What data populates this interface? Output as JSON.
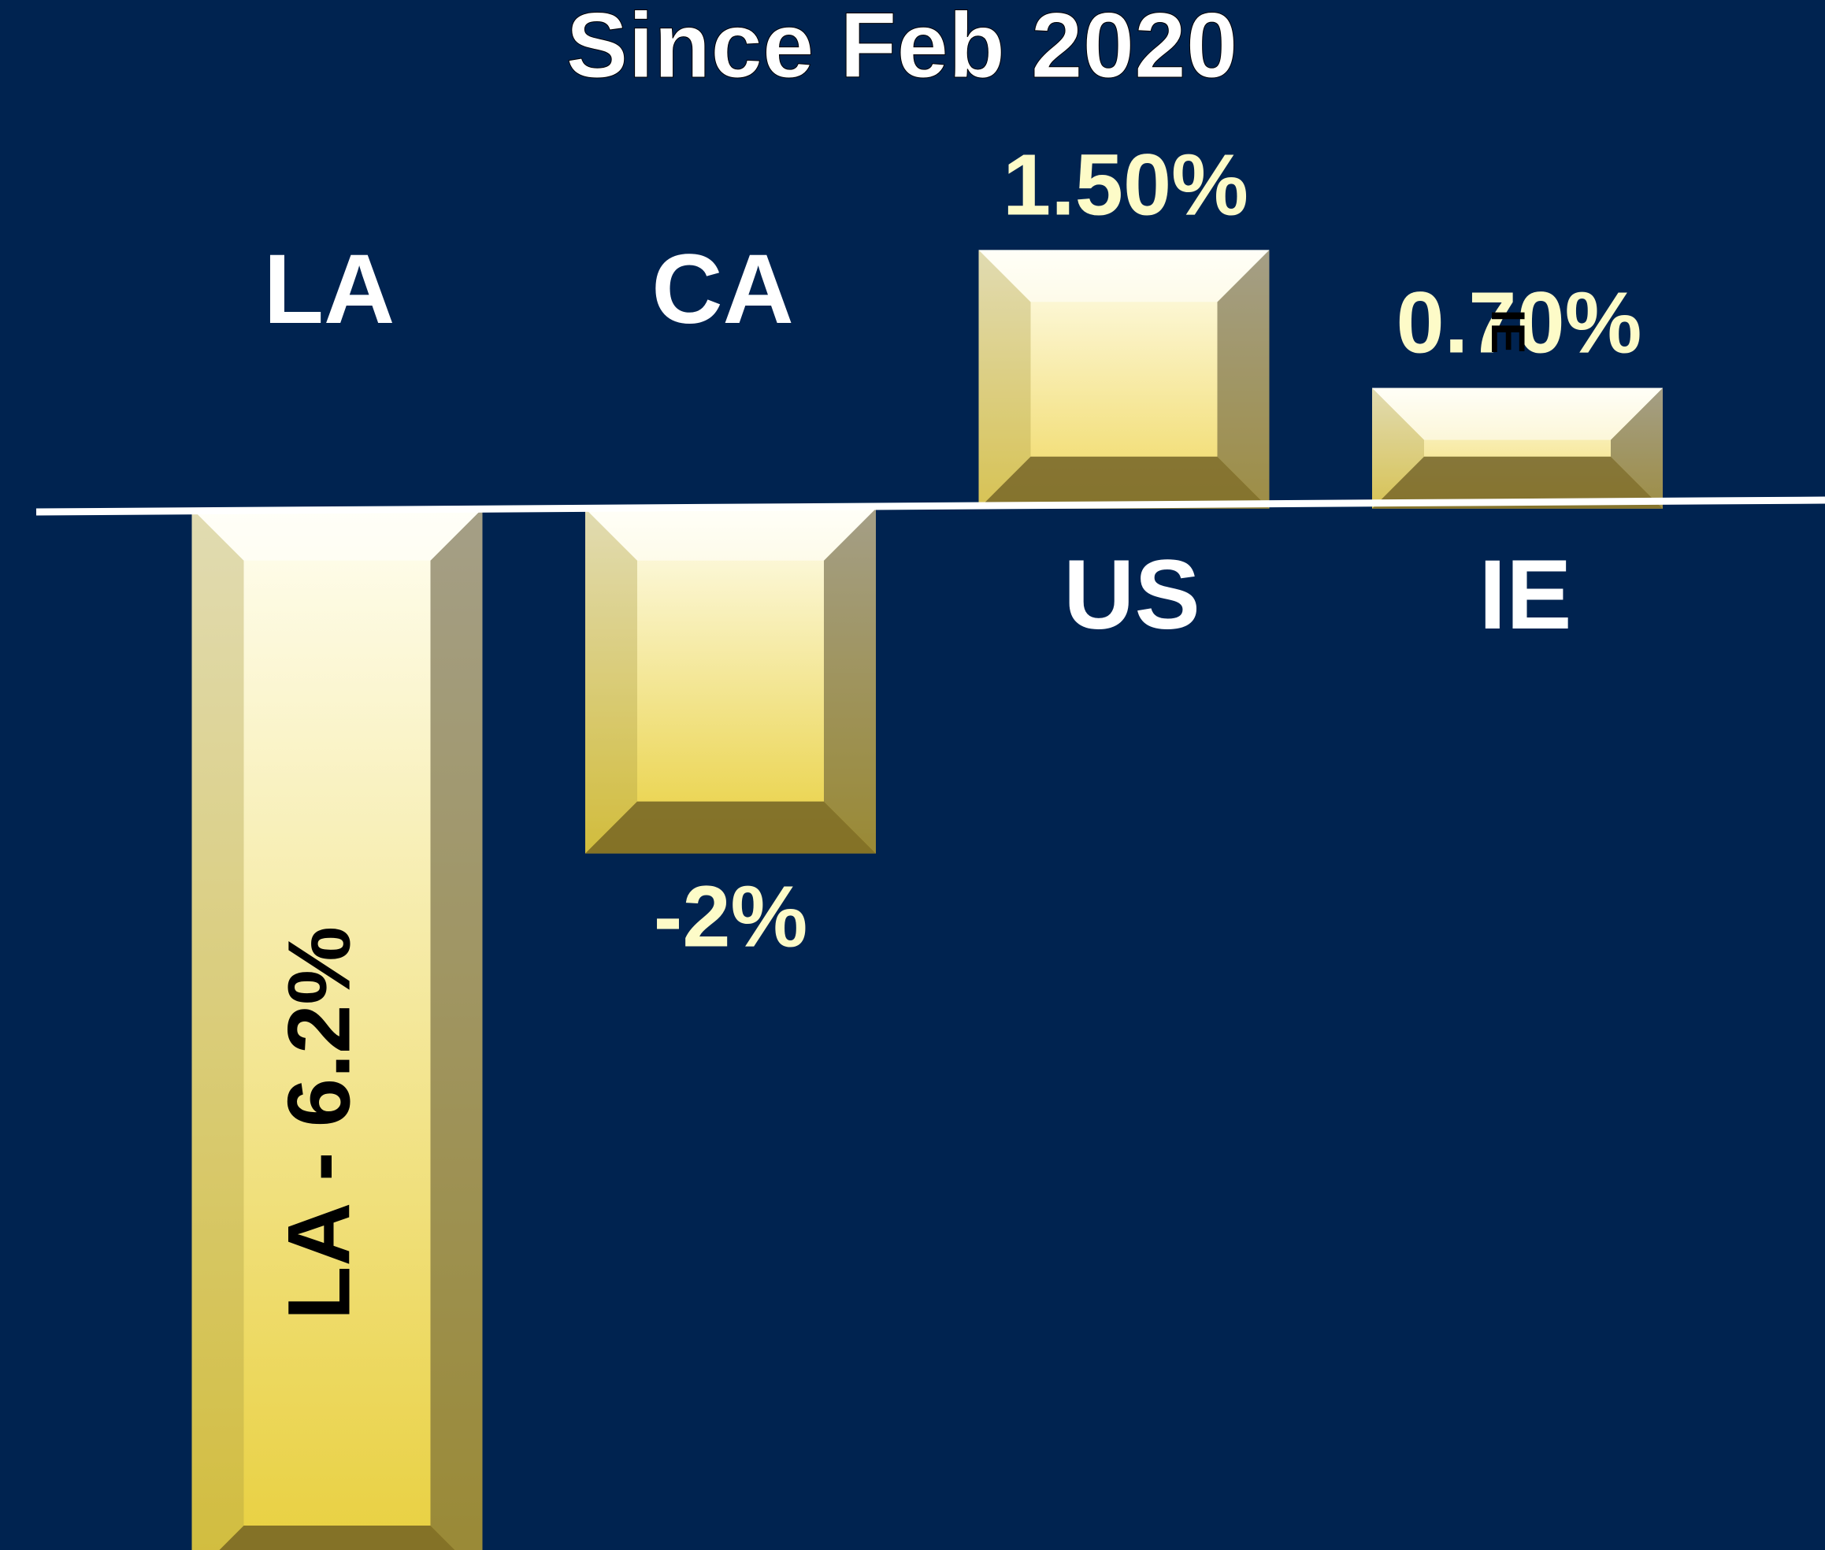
{
  "chart_data": {
    "type": "bar",
    "title": "Since Feb 2020",
    "categories": [
      "LA",
      "CA",
      "US",
      "IE"
    ],
    "values": [
      -6.2,
      -2,
      1.5,
      0.7
    ],
    "value_labels": [
      "LA  - 6.2%",
      "-2%",
      "1.50%",
      "0.70%"
    ],
    "annotations": [
      "IE"
    ],
    "color": "#e8cf3c",
    "ylim": [
      -6.04,
      2.95
    ]
  }
}
